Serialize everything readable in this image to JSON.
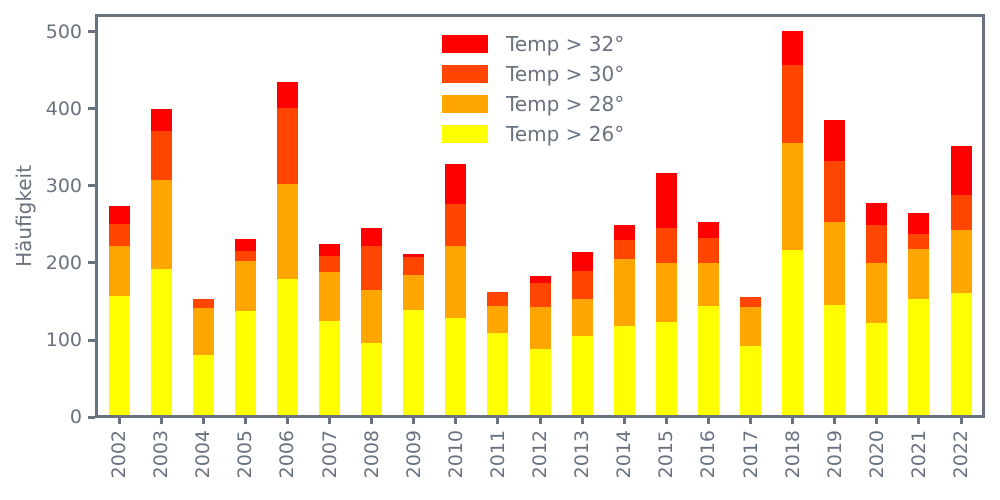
{
  "figure": {
    "background_color": "#ffffff",
    "axis_color": "#6a7280",
    "y_axis_title": "Häufigkeit"
  },
  "legend": {
    "items": [
      {
        "label": "Temp > 32°",
        "color": "#ff0000"
      },
      {
        "label": "Temp > 30°",
        "color": "#ff4500"
      },
      {
        "label": "Temp > 28°",
        "color": "#ffa500"
      },
      {
        "label": "Temp > 26°",
        "color": "#ffff00"
      }
    ]
  },
  "chart_data": {
    "type": "bar",
    "stacked": true,
    "title": "",
    "xlabel": "",
    "ylabel": "Häufigkeit",
    "grid": false,
    "legend_position": "upper center",
    "ylim": [
      0,
      522
    ],
    "y_ticks": [
      0,
      100,
      200,
      300,
      400,
      500
    ],
    "categories": [
      "2002",
      "2003",
      "2004",
      "2005",
      "2006",
      "2007",
      "2008",
      "2009",
      "2010",
      "2011",
      "2012",
      "2013",
      "2014",
      "2015",
      "2016",
      "2017",
      "2018",
      "2019",
      "2020",
      "2021",
      "2022"
    ],
    "series": [
      {
        "name": "Temp > 26°",
        "color": "#ffff00",
        "values": [
          154,
          189,
          78,
          135,
          176,
          122,
          93,
          136,
          126,
          106,
          86,
          102,
          115,
          121,
          142,
          89,
          214,
          143,
          119,
          151,
          158
        ]
      },
      {
        "name": "Temp > 28°",
        "color": "#ffa500",
        "values": [
          66,
          116,
          61,
          65,
          124,
          64,
          70,
          46,
          94,
          35,
          54,
          48,
          87,
          77,
          56,
          51,
          139,
          107,
          78,
          64,
          82
        ]
      },
      {
        "name": "Temp > 30°",
        "color": "#ff4500",
        "values": [
          28,
          64,
          12,
          13,
          99,
          21,
          57,
          23,
          54,
          18,
          31,
          37,
          25,
          45,
          32,
          13,
          101,
          80,
          50,
          20,
          46
        ]
      },
      {
        "name": "Temp > 32°",
        "color": "#ff0000",
        "values": [
          24,
          28,
          0,
          15,
          33,
          15,
          23,
          4,
          52,
          0,
          10,
          25,
          20,
          71,
          21,
          0,
          44,
          53,
          28,
          27,
          63
        ]
      }
    ],
    "totals": [
      272,
      397,
      151,
      228,
      432,
      222,
      243,
      209,
      326,
      159,
      181,
      212,
      247,
      314,
      251,
      153,
      498,
      383,
      275,
      262,
      349
    ]
  }
}
